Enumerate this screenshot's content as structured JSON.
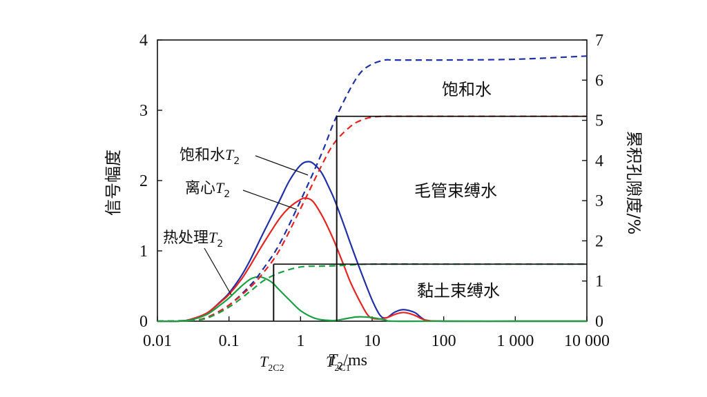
{
  "chart_data": {
    "type": "line",
    "x_scale": "log",
    "xlim": [
      0.01,
      10000
    ],
    "ylim_left": [
      0,
      4
    ],
    "ylim_right": [
      0,
      7
    ],
    "x_ticks": [
      0.01,
      0.1,
      1,
      10,
      100,
      1000,
      10000
    ],
    "x_tick_labels": [
      "0.01",
      "0.1",
      "1",
      "10",
      "100",
      "1 000",
      "10 000"
    ],
    "y_left_ticks": [
      0,
      1,
      2,
      3,
      4
    ],
    "y_left_tick_labels": [
      "0",
      "1",
      "2",
      "3",
      "4"
    ],
    "y_right_ticks": [
      0,
      1,
      2,
      3,
      4,
      5,
      6,
      7
    ],
    "y_right_tick_labels": [
      "0",
      "1",
      "2",
      "3",
      "4",
      "5",
      "6",
      "7"
    ],
    "xlabel_main": "T",
    "xlabel_sub": "2",
    "xlabel_unit": "/ms",
    "ylabel_left": "信号幅度",
    "ylabel_right": "累积孔隙度/%",
    "grid": false,
    "colors": {
      "saturated": "#1f2fa8",
      "centrifuged": "#e8221e",
      "heat_treated": "#17a040",
      "axis": "#111111"
    },
    "series": [
      {
        "key": "saturated_T2",
        "axis": "left",
        "style": "solid",
        "color": "#1f2fa8",
        "label_prefix": "饱和水",
        "label_italic": "T",
        "label_sub": "2",
        "x": [
          0.01,
          0.02,
          0.03,
          0.05,
          0.08,
          0.1,
          0.15,
          0.2,
          0.3,
          0.5,
          0.7,
          1,
          1.3,
          1.6,
          2,
          2.5,
          3,
          4,
          5,
          7,
          10,
          13,
          16,
          20,
          25,
          30,
          40,
          50,
          60,
          100,
          1000,
          10000
        ],
        "y": [
          0,
          0,
          0.03,
          0.12,
          0.3,
          0.4,
          0.65,
          0.88,
          1.25,
          1.7,
          2.0,
          2.22,
          2.27,
          2.22,
          2.1,
          1.9,
          1.72,
          1.38,
          1.1,
          0.7,
          0.3,
          0.08,
          0.05,
          0.12,
          0.16,
          0.16,
          0.12,
          0.04,
          0.01,
          0,
          0,
          0
        ]
      },
      {
        "key": "centrifuged_T2",
        "axis": "left",
        "style": "solid",
        "color": "#e8221e",
        "label_prefix": "离心",
        "label_italic": "T",
        "label_sub": "2",
        "x": [
          0.01,
          0.02,
          0.03,
          0.05,
          0.08,
          0.1,
          0.15,
          0.2,
          0.3,
          0.5,
          0.7,
          1,
          1.2,
          1.5,
          2,
          2.5,
          3,
          4,
          5,
          7,
          9,
          12,
          16,
          20,
          25,
          30,
          40,
          50,
          60,
          100,
          1000,
          10000
        ],
        "y": [
          0,
          0,
          0.03,
          0.12,
          0.29,
          0.38,
          0.6,
          0.8,
          1.1,
          1.45,
          1.62,
          1.73,
          1.75,
          1.7,
          1.5,
          1.3,
          1.12,
          0.8,
          0.55,
          0.25,
          0.07,
          0.03,
          0.05,
          0.09,
          0.12,
          0.12,
          0.08,
          0.03,
          0.01,
          0,
          0,
          0
        ]
      },
      {
        "key": "heat_treated_T2",
        "axis": "left",
        "style": "solid",
        "color": "#17a040",
        "label_prefix": "热处理",
        "label_italic": "T",
        "label_sub": "2",
        "x": [
          0.01,
          0.02,
          0.03,
          0.05,
          0.08,
          0.1,
          0.15,
          0.2,
          0.25,
          0.3,
          0.4,
          0.5,
          0.7,
          1,
          1.5,
          2,
          3,
          4,
          6,
          8,
          10,
          15,
          20,
          100,
          1000,
          10000
        ],
        "y": [
          0,
          0,
          0.02,
          0.1,
          0.25,
          0.33,
          0.5,
          0.6,
          0.63,
          0.62,
          0.55,
          0.45,
          0.3,
          0.15,
          0.05,
          0.02,
          0.01,
          0.03,
          0.06,
          0.06,
          0.05,
          0.02,
          0,
          0,
          0,
          0
        ]
      },
      {
        "key": "saturated_cumulative",
        "axis": "right",
        "style": "dashed",
        "color": "#1f2fa8",
        "x": [
          0.01,
          0.03,
          0.05,
          0.1,
          0.2,
          0.3,
          0.5,
          1,
          2,
          3,
          5,
          7,
          10,
          15,
          20,
          50,
          100,
          1000,
          10000
        ],
        "y": [
          0,
          0.02,
          0.1,
          0.4,
          0.9,
          1.3,
          1.9,
          3.0,
          4.2,
          5.0,
          5.8,
          6.2,
          6.4,
          6.5,
          6.5,
          6.5,
          6.5,
          6.52,
          6.6
        ]
      },
      {
        "key": "centrifuged_cumulative",
        "axis": "right",
        "style": "dashed",
        "color": "#e8221e",
        "x": [
          0.01,
          0.03,
          0.05,
          0.1,
          0.2,
          0.3,
          0.5,
          1,
          2,
          3,
          5,
          7,
          10,
          15,
          20,
          50,
          100,
          1000,
          10000
        ],
        "y": [
          0,
          0.02,
          0.1,
          0.4,
          0.85,
          1.2,
          1.75,
          2.8,
          3.9,
          4.45,
          4.85,
          5.0,
          5.08,
          5.1,
          5.1,
          5.1,
          5.1,
          5.1,
          5.1
        ]
      },
      {
        "key": "heat_treated_cumulative",
        "axis": "right",
        "style": "dashed",
        "color": "#17a040",
        "x": [
          0.01,
          0.03,
          0.05,
          0.1,
          0.2,
          0.3,
          0.5,
          1,
          2,
          3,
          5,
          10,
          100,
          1000,
          10000
        ],
        "y": [
          0,
          0.02,
          0.08,
          0.35,
          0.75,
          1.0,
          1.2,
          1.35,
          1.37,
          1.38,
          1.4,
          1.42,
          1.42,
          1.42,
          1.42
        ]
      }
    ],
    "cutoffs": [
      {
        "key": "T2C2",
        "x": 0.42,
        "label_main": "T",
        "label_sub": "2C2",
        "top_right_axis": 1.42
      },
      {
        "key": "T2C1",
        "x": 3.2,
        "label_main": "T",
        "label_sub": "2C1",
        "top_right_axis": 5.1
      }
    ],
    "region_labels": [
      {
        "key": "saturated_water",
        "text": "饱和水"
      },
      {
        "key": "capillary_bound_water",
        "text": "毛管束缚水"
      },
      {
        "key": "clay_bound_water",
        "text": "黏土束缚水"
      }
    ]
  }
}
